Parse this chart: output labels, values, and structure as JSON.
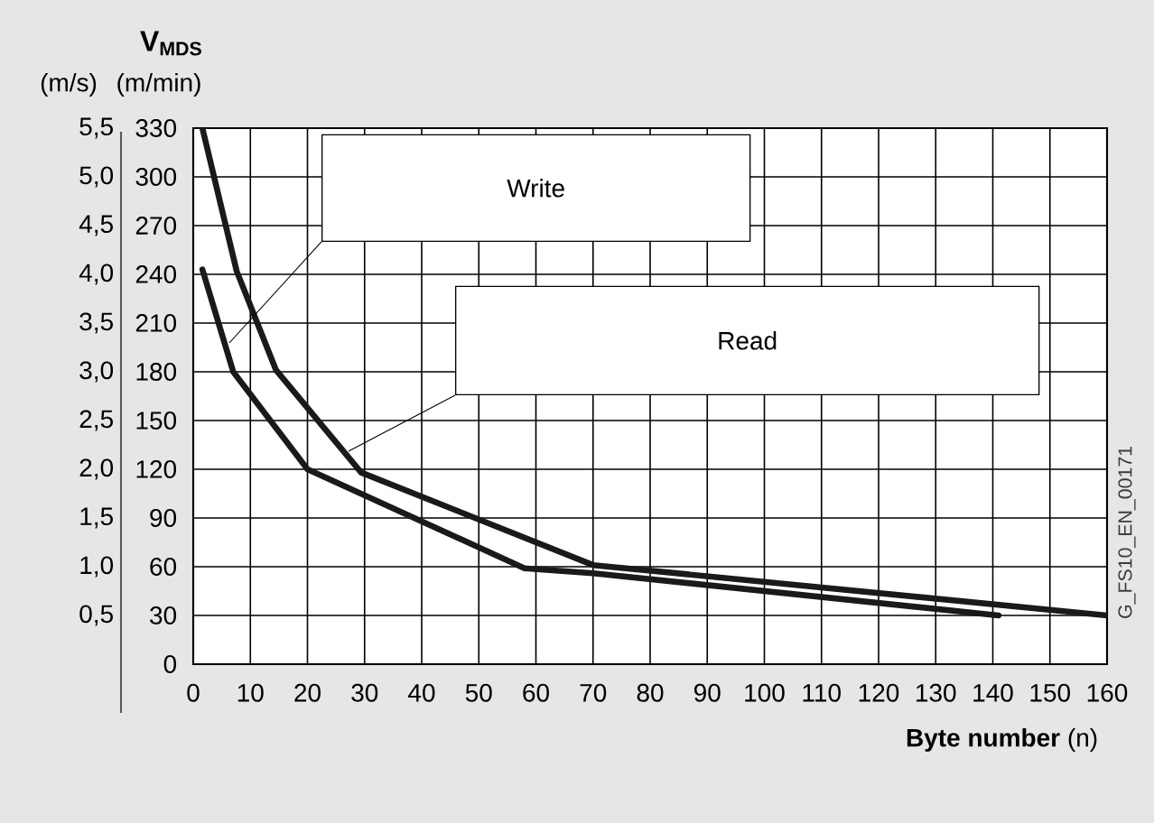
{
  "chart_data": {
    "type": "line",
    "title": "V$_{MDS}$",
    "ylabel": "(m/min)",
    "y2label": "(m/s)",
    "xlabel": "**Byte number**  (n)",
    "x": [
      1.6,
      7.6,
      14.5,
      29.4,
      70,
      160
    ],
    "series": [
      {
        "color": "#1a1a1a",
        "values": [
          330,
          242,
          181,
          118,
          61,
          30
        ]
      },
      {
        "color": "#1a1a1a",
        "x": [
          1.6,
          7,
          20,
          58,
          70,
          141
        ],
        "values": [
          243,
          180,
          120,
          59,
          56,
          30
        ]
      }
    ],
    "xlim": [
      0,
      160
    ],
    "xticks": [
      0,
      10,
      20,
      30,
      40,
      50,
      60,
      70,
      80,
      90,
      100,
      110,
      120,
      130,
      140,
      150,
      160
    ],
    "ylim": [
      0,
      330
    ],
    "yticks": [
      0,
      30,
      60,
      90,
      120,
      150,
      180,
      210,
      240,
      270,
      300,
      330
    ],
    "y2lim": [
      0,
      5.5
    ],
    "y2ticks": [
      {
        "value": 0.5,
        "label": "0,5"
      },
      {
        "value": 1.0,
        "label": "1,0"
      },
      {
        "value": 1.5,
        "label": "1,5"
      },
      {
        "value": 2.0,
        "label": "2,0"
      },
      {
        "value": 2.5,
        "label": "2,5"
      },
      {
        "value": 3.0,
        "label": "3,0"
      },
      {
        "value": 3.5,
        "label": "3,5"
      },
      {
        "value": 4.0,
        "label": "4,0"
      },
      {
        "value": 4.5,
        "label": "4,5"
      },
      {
        "value": 5.0,
        "label": "5,0"
      },
      {
        "value": 5.5,
        "label": "5,5"
      }
    ],
    "grid": true,
    "marker": "none",
    "line_style": "solid",
    "annotations": [
      "Write",
      "Read",
      "G_FS10_EN_00171"
    ]
  }
}
